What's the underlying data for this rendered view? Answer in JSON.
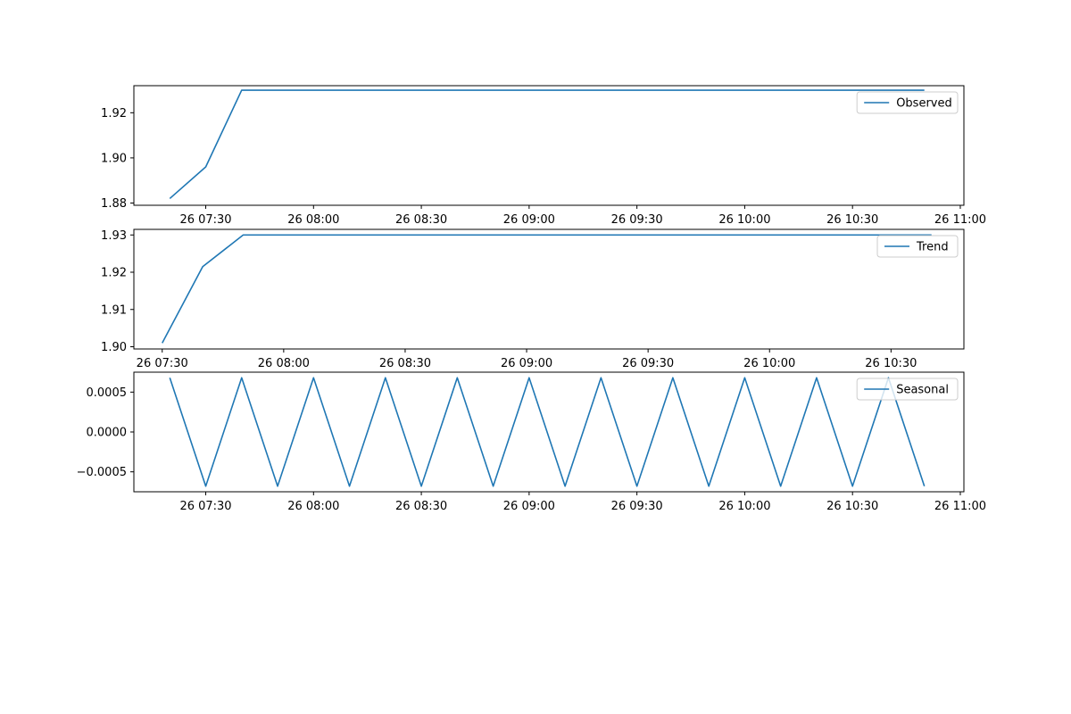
{
  "chart_data": [
    {
      "type": "line",
      "series": [
        {
          "name": "Observed",
          "x": [
            "07:20",
            "07:30",
            "07:40",
            "07:50",
            "08:00",
            "08:10",
            "08:20",
            "08:30",
            "08:40",
            "08:50",
            "09:00",
            "09:10",
            "09:20",
            "09:30",
            "09:40",
            "09:50",
            "10:00",
            "10:10",
            "10:20",
            "10:30",
            "10:40",
            "10:50"
          ],
          "values": [
            1.882,
            1.896,
            1.93,
            1.93,
            1.93,
            1.93,
            1.93,
            1.93,
            1.93,
            1.93,
            1.93,
            1.93,
            1.93,
            1.93,
            1.93,
            1.93,
            1.93,
            1.93,
            1.93,
            1.93,
            1.93,
            1.93
          ]
        }
      ],
      "xlim": [
        "07:10",
        "11:01"
      ],
      "ylim": [
        1.879,
        1.932
      ],
      "x_ticks": [
        "26 07:30",
        "26 08:00",
        "26 08:30",
        "26 09:00",
        "26 09:30",
        "26 10:00",
        "26 10:30",
        "26 11:00"
      ],
      "y_ticks": [
        "1.88",
        "1.90",
        "1.92"
      ],
      "legend": "upper right",
      "color": "#1f77b4"
    },
    {
      "type": "line",
      "series": [
        {
          "name": "Trend",
          "x": [
            "07:30",
            "07:40",
            "07:50",
            "08:00",
            "08:10",
            "08:20",
            "08:30",
            "08:40",
            "08:50",
            "09:00",
            "09:10",
            "09:20",
            "09:30",
            "09:40",
            "09:50",
            "10:00",
            "10:10",
            "10:20",
            "10:30",
            "10:40"
          ],
          "values": [
            1.901,
            1.9215,
            1.93,
            1.93,
            1.93,
            1.93,
            1.93,
            1.93,
            1.93,
            1.93,
            1.93,
            1.93,
            1.93,
            1.93,
            1.93,
            1.93,
            1.93,
            1.93,
            1.93,
            1.93
          ]
        }
      ],
      "xlim": [
        "07:23",
        "10:48"
      ],
      "ylim": [
        1.8994,
        1.9315
      ],
      "x_ticks": [
        "26 07:30",
        "26 08:00",
        "26 08:30",
        "26 09:00",
        "26 09:30",
        "26 10:00",
        "26 10:30"
      ],
      "y_ticks": [
        "1.90",
        "1.91",
        "1.92",
        "1.93"
      ],
      "legend": "upper right",
      "color": "#1f77b4"
    },
    {
      "type": "line",
      "series": [
        {
          "name": "Seasonal",
          "x": [
            "07:20",
            "07:30",
            "07:40",
            "07:50",
            "08:00",
            "08:10",
            "08:20",
            "08:30",
            "08:40",
            "08:50",
            "09:00",
            "09:10",
            "09:20",
            "09:30",
            "09:40",
            "09:50",
            "10:00",
            "10:10",
            "10:20",
            "10:30",
            "10:40",
            "10:50"
          ],
          "values": [
            0.00068,
            -0.00068,
            0.00068,
            -0.00068,
            0.00068,
            -0.00068,
            0.00068,
            -0.00068,
            0.00068,
            -0.00068,
            0.00068,
            -0.00068,
            0.00068,
            -0.00068,
            0.00068,
            -0.00068,
            0.00068,
            -0.00068,
            0.00068,
            -0.00068,
            0.00068,
            -0.00068
          ]
        }
      ],
      "xlim": [
        "07:10",
        "11:01"
      ],
      "ylim": [
        -0.00075,
        0.00075
      ],
      "x_ticks": [
        "26 07:30",
        "26 08:00",
        "26 08:30",
        "26 09:00",
        "26 09:30",
        "26 10:00",
        "26 10:30",
        "26 11:00"
      ],
      "y_ticks": [
        "0.0005",
        "0.0000",
        "−0.0005"
      ],
      "legend": "upper right",
      "color": "#1f77b4"
    }
  ]
}
